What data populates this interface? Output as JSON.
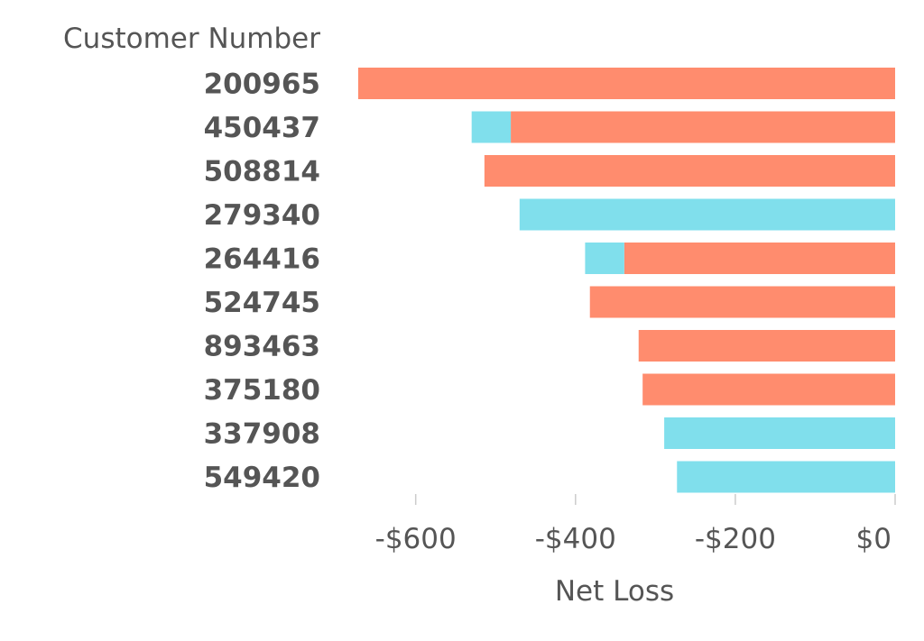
{
  "chart_data": {
    "type": "bar",
    "orientation": "horizontal",
    "stacked": true,
    "ylabel": "Customer Number",
    "xlabel": "Net Loss",
    "xlim": [
      -680,
      0
    ],
    "xticks": [
      -600,
      -400,
      -200,
      0
    ],
    "xtick_labels": [
      "-$600",
      "-$400",
      "-$200",
      "$0"
    ],
    "categories": [
      "200965",
      "450437",
      "508814",
      "279340",
      "264416",
      "524745",
      "893463",
      "375180",
      "337908",
      "549420"
    ],
    "series": [
      {
        "color": "#FF8C6E",
        "values": [
          -672,
          -481,
          -514,
          0,
          -339,
          -382,
          -321,
          -316,
          0,
          0
        ]
      },
      {
        "color": "#80DFEC",
        "values": [
          0,
          -49,
          0,
          -470,
          -49,
          0,
          0,
          0,
          -289,
          -273
        ]
      }
    ]
  }
}
